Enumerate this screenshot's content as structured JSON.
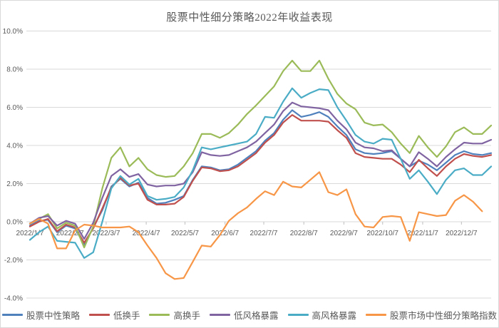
{
  "chart_data": {
    "type": "line",
    "title": "股票中性细分策略2022年收益表现",
    "xlabel": "",
    "ylabel": "",
    "ylim": [
      -4,
      10
    ],
    "y_tick_step": 2,
    "y_tick_labels": [
      "10.0%",
      "8.0%",
      "6.0%",
      "4.0%",
      "2.0%",
      "0.0%",
      "-2.0%",
      "-4.0%"
    ],
    "x_axis_labels": [
      "2022/1/7",
      "2022/2/7",
      "2022/3/7",
      "2022/4/7",
      "2022/5/7",
      "2022/6/7",
      "2022/7/7",
      "2022/8/7",
      "2022/9/7",
      "2022/10/7",
      "2022/11/7",
      "2022/12/7"
    ],
    "grid": "horizontal",
    "legend_position": "bottom",
    "unit": "percent",
    "dates": [
      "2022/1/7",
      "2022/1/14",
      "2022/1/21",
      "2022/1/28",
      "2022/2/4",
      "2022/2/11",
      "2022/2/18",
      "2022/2/25",
      "2022/3/4",
      "2022/3/11",
      "2022/3/18",
      "2022/3/25",
      "2022/4/1",
      "2022/4/8",
      "2022/4/15",
      "2022/4/22",
      "2022/4/29",
      "2022/5/6",
      "2022/5/13",
      "2022/5/20",
      "2022/5/27",
      "2022/6/3",
      "2022/6/10",
      "2022/6/17",
      "2022/6/24",
      "2022/7/1",
      "2022/7/8",
      "2022/7/15",
      "2022/7/22",
      "2022/7/29",
      "2022/8/5",
      "2022/8/12",
      "2022/8/19",
      "2022/8/26",
      "2022/9/2",
      "2022/9/9",
      "2022/9/16",
      "2022/9/23",
      "2022/9/30",
      "2022/10/7",
      "2022/10/14",
      "2022/10/21",
      "2022/10/28",
      "2022/11/4",
      "2022/11/11",
      "2022/11/18",
      "2022/11/25",
      "2022/12/2",
      "2022/12/9",
      "2022/12/16",
      "2022/12/23",
      "2022/12/30"
    ],
    "series": [
      {
        "name": "股票中性策略",
        "color": "#4F81BD",
        "values": [
          -0.2,
          0.05,
          0.1,
          -0.55,
          -0.2,
          -0.35,
          -1.2,
          -0.3,
          0.6,
          1.85,
          2.25,
          1.85,
          2.05,
          1.25,
          0.95,
          1.0,
          1.15,
          1.35,
          2.2,
          2.9,
          2.85,
          2.7,
          2.75,
          3.0,
          3.35,
          3.7,
          4.25,
          4.65,
          5.35,
          5.85,
          5.5,
          5.6,
          5.75,
          5.5,
          5.0,
          4.55,
          3.8,
          3.6,
          3.55,
          3.6,
          3.7,
          3.3,
          2.9,
          3.2,
          3.0,
          2.7,
          3.1,
          3.5,
          3.7,
          3.55,
          3.5,
          3.6
        ]
      },
      {
        "name": "低换手",
        "color": "#C0504D",
        "values": [
          -0.25,
          0.0,
          0.15,
          -0.5,
          -0.15,
          -0.3,
          -1.1,
          -0.35,
          0.7,
          1.8,
          2.3,
          1.9,
          2.0,
          1.15,
          0.9,
          0.9,
          0.95,
          1.3,
          2.15,
          2.85,
          2.8,
          2.65,
          2.7,
          2.9,
          3.25,
          3.6,
          4.15,
          4.55,
          5.2,
          5.6,
          5.3,
          5.3,
          5.3,
          5.25,
          4.8,
          4.4,
          3.6,
          3.4,
          3.35,
          3.3,
          3.3,
          3.0,
          2.6,
          3.25,
          2.8,
          2.4,
          2.9,
          3.3,
          3.55,
          3.45,
          3.4,
          3.5
        ]
      },
      {
        "name": "高换手",
        "color": "#9BBB59",
        "values": [
          -0.1,
          0.15,
          0.4,
          -0.35,
          -0.05,
          -0.2,
          -1.35,
          -0.25,
          1.75,
          3.35,
          3.9,
          2.9,
          3.35,
          2.75,
          2.45,
          2.35,
          2.4,
          2.9,
          3.6,
          4.6,
          4.6,
          4.4,
          4.65,
          5.1,
          5.65,
          6.1,
          6.6,
          7.1,
          7.9,
          8.45,
          7.9,
          7.9,
          8.45,
          7.5,
          6.7,
          6.2,
          5.9,
          5.2,
          5.05,
          5.1,
          4.7,
          4.1,
          3.6,
          4.5,
          3.9,
          3.4,
          3.95,
          4.7,
          4.95,
          4.6,
          4.6,
          5.05
        ]
      },
      {
        "name": "低风格暴露",
        "color": "#8064A2",
        "values": [
          -0.1,
          0.2,
          0.3,
          -0.2,
          0.05,
          -0.1,
          -0.9,
          -0.05,
          1.25,
          2.4,
          2.75,
          2.35,
          2.5,
          1.95,
          1.85,
          1.9,
          1.9,
          2.0,
          2.6,
          3.65,
          3.5,
          3.45,
          3.5,
          3.7,
          3.9,
          4.2,
          4.65,
          5.1,
          5.8,
          6.25,
          6.05,
          6.0,
          5.95,
          5.85,
          5.3,
          4.85,
          4.15,
          3.9,
          3.85,
          3.7,
          3.75,
          3.3,
          2.9,
          3.65,
          3.3,
          2.9,
          3.4,
          3.8,
          4.15,
          4.1,
          4.1,
          4.3
        ]
      },
      {
        "name": "高风格暴露",
        "color": "#4BACC6",
        "values": [
          -0.95,
          -0.55,
          -0.25,
          -1.0,
          -1.05,
          -1.1,
          -1.9,
          -1.6,
          0.0,
          1.75,
          2.4,
          1.95,
          2.25,
          1.35,
          1.15,
          1.2,
          1.3,
          1.8,
          2.7,
          3.9,
          3.8,
          3.9,
          4.0,
          4.1,
          4.2,
          4.6,
          5.5,
          5.45,
          6.3,
          7.0,
          6.5,
          6.75,
          6.95,
          6.9,
          6.0,
          5.3,
          4.55,
          4.2,
          4.1,
          4.35,
          4.3,
          3.3,
          2.25,
          2.7,
          2.1,
          1.45,
          2.2,
          2.7,
          2.8,
          2.45,
          2.45,
          2.9
        ]
      },
      {
        "name": "股票市场中性细分策略指数",
        "color": "#F79646",
        "values": [
          -0.1,
          0.15,
          -0.1,
          -1.4,
          -1.4,
          -0.45,
          -0.15,
          -0.2,
          -0.3,
          -0.3,
          -0.3,
          -0.25,
          -0.55,
          -1.25,
          -1.9,
          -2.7,
          -3.0,
          -2.95,
          -2.1,
          -1.25,
          -1.3,
          -0.7,
          0.05,
          0.45,
          0.75,
          1.2,
          1.6,
          1.4,
          2.1,
          1.85,
          1.8,
          2.2,
          2.6,
          1.55,
          1.4,
          1.7,
          0.4,
          -0.25,
          -0.3,
          0.25,
          0.3,
          0.25,
          -1.0,
          0.5,
          0.4,
          0.3,
          0.35,
          1.1,
          1.4,
          1.05,
          0.55,
          null
        ]
      }
    ]
  }
}
